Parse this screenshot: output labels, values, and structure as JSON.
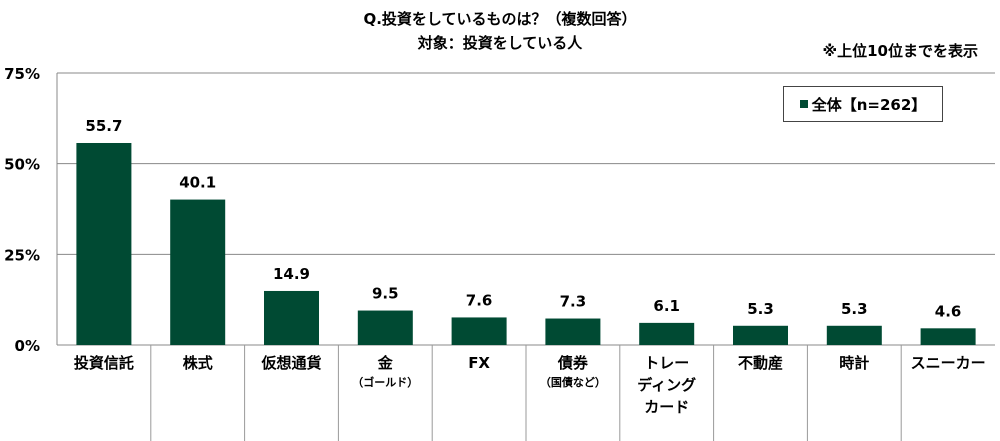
{
  "chart_data": {
    "type": "bar",
    "title": "Q.投資をしているものは？（複数回答）",
    "subtitle": "対象：投資をしている人",
    "note": "※上位10位までを表示",
    "categories": [
      [
        "投資信託"
      ],
      [
        "株式"
      ],
      [
        "仮想通貨"
      ],
      [
        "金",
        "（ゴールド）"
      ],
      [
        "FX"
      ],
      [
        "債券",
        "（国債など）"
      ],
      [
        "トレー",
        "ディング",
        "カード"
      ],
      [
        "不動産"
      ],
      [
        "時計"
      ],
      [
        "スニーカー"
      ]
    ],
    "series": [
      {
        "name": "全体【n=262】",
        "color": "#004a33",
        "values": [
          55.7,
          40.1,
          14.9,
          9.5,
          7.6,
          7.3,
          6.1,
          5.3,
          5.3,
          4.6
        ]
      }
    ],
    "data_labels": [
      "55.7",
      "40.1",
      "14.9",
      "9.5",
      "7.6",
      "7.3",
      "6.1",
      "5.3",
      "5.3",
      "4.6"
    ],
    "yticks": [
      0,
      25,
      50,
      75
    ],
    "ytick_labels": [
      "0%",
      "25%",
      "50%",
      "75%"
    ],
    "ylim": [
      0,
      75
    ],
    "grid": true,
    "legend_position": "top-right",
    "xlabel": "",
    "ylabel": ""
  }
}
